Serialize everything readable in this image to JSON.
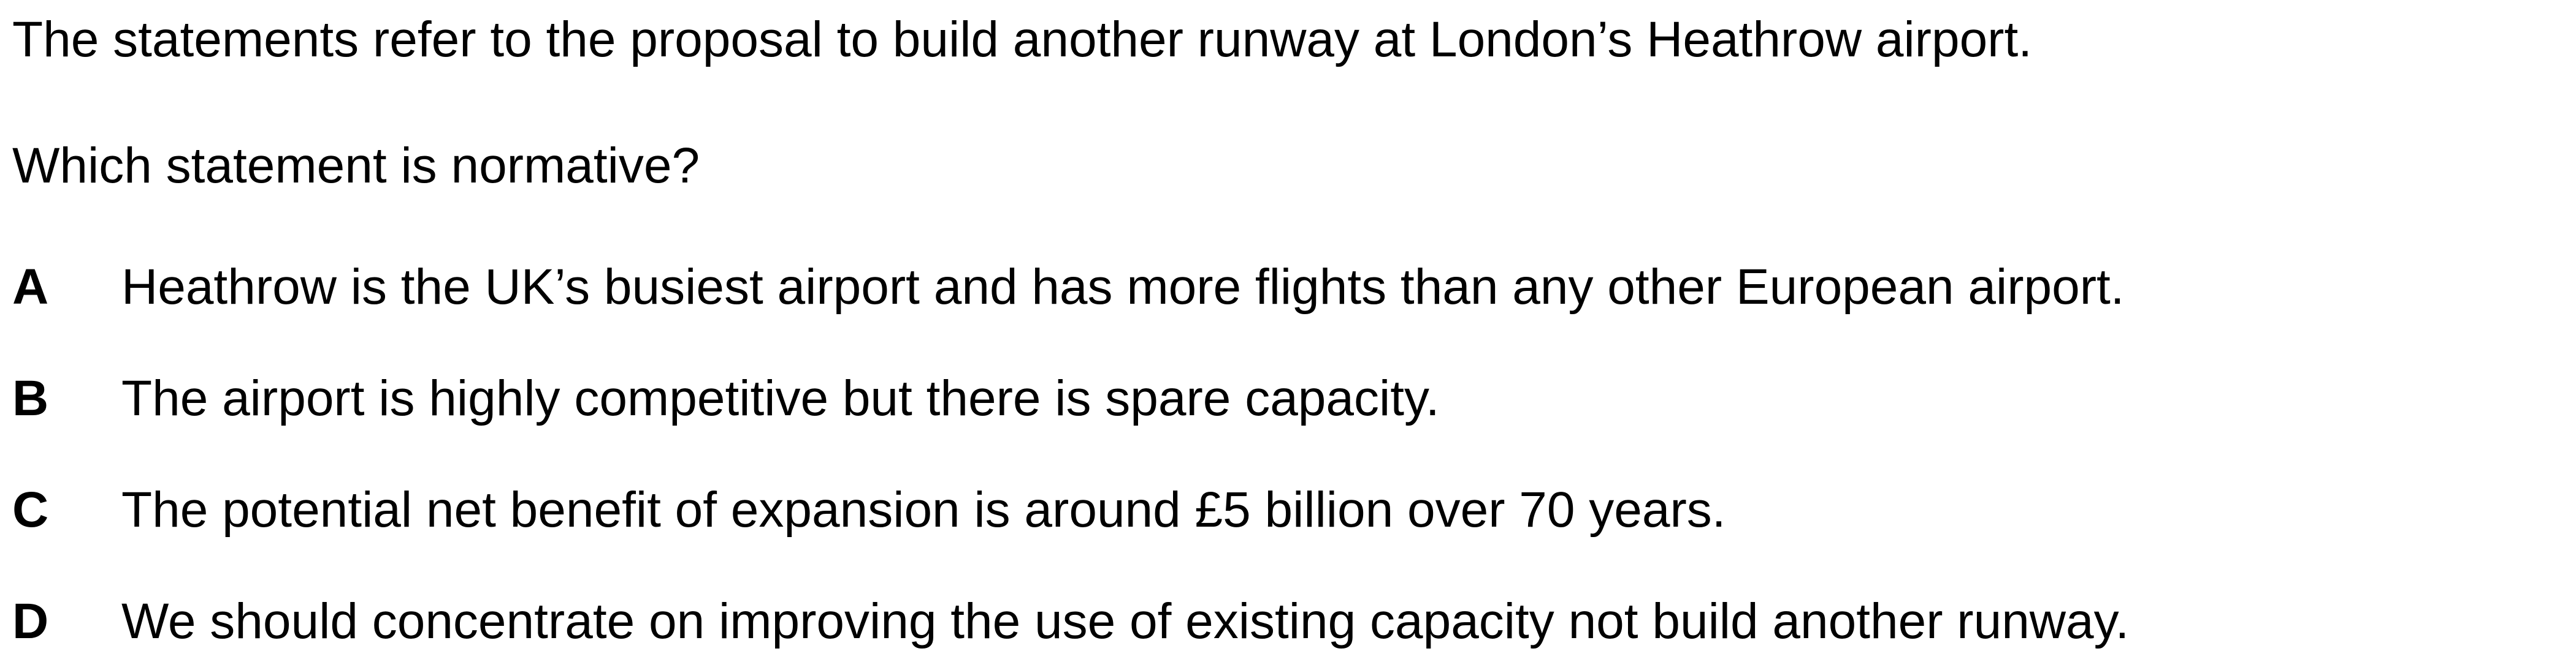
{
  "stem": "The statements refer to the proposal to build another runway at London’s Heathrow airport.",
  "question": "Which statement is normative?",
  "options": [
    {
      "letter": "A",
      "text": "Heathrow is the UK’s busiest airport and has more flights than any other European airport."
    },
    {
      "letter": "B",
      "text": "The airport is highly competitive but there is spare capacity."
    },
    {
      "letter": "C",
      "text": "The potential net benefit of expansion is around £5 billion over 70 years."
    },
    {
      "letter": "D",
      "text": "We should concentrate on improving the use of existing capacity not build another runway."
    }
  ]
}
